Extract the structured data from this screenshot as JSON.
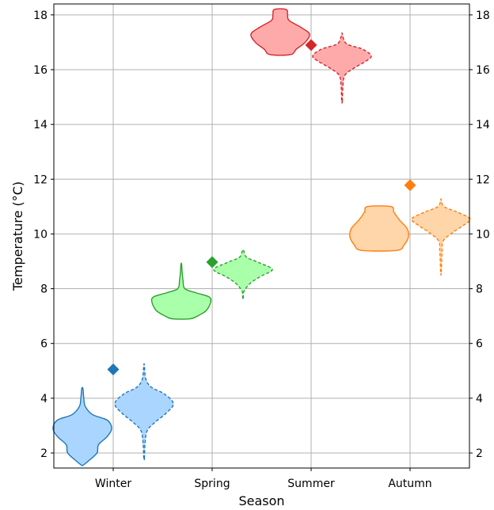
{
  "chart_data": {
    "type": "violin",
    "xlabel": "Season",
    "ylabel": "Temperature (°C)",
    "categories": [
      "Winter",
      "Spring",
      "Summer",
      "Autumn"
    ],
    "ylim": [
      1.45,
      18.4
    ],
    "yticks": [
      2,
      4,
      6,
      8,
      10,
      12,
      14,
      16,
      18
    ],
    "grid": true,
    "colors": {
      "Winter": {
        "line": "#1f77b4",
        "fill": "#aad5ff"
      },
      "Spring": {
        "line": "#2ca02c",
        "fill": "#aaffaa"
      },
      "Summer": {
        "line": "#d62728",
        "fill": "#ffaaaa"
      },
      "Autumn": {
        "line": "#ff7f0e",
        "fill": "#ffd5aa"
      }
    },
    "diamond_markers": [
      {
        "category": "Winter",
        "value": 5.05
      },
      {
        "category": "Spring",
        "value": 8.97
      },
      {
        "category": "Summer",
        "value": 16.9
      },
      {
        "category": "Autumn",
        "value": 11.78
      }
    ],
    "violins": [
      {
        "category": "Winter",
        "side": "left",
        "style": "solid",
        "profile": [
          [
            1.55,
            0.02
          ],
          [
            1.7,
            0.2
          ],
          [
            2.0,
            0.5
          ],
          [
            2.3,
            0.55
          ],
          [
            2.6,
            0.85
          ],
          [
            2.9,
            1.0
          ],
          [
            3.2,
            0.85
          ],
          [
            3.4,
            0.35
          ],
          [
            3.7,
            0.1
          ],
          [
            4.0,
            0.05
          ],
          [
            4.35,
            0.02
          ]
        ]
      },
      {
        "category": "Winter",
        "side": "right",
        "style": "dashed",
        "profile": [
          [
            1.8,
            0.01
          ],
          [
            2.3,
            0.03
          ],
          [
            2.8,
            0.1
          ],
          [
            3.1,
            0.35
          ],
          [
            3.45,
            0.75
          ],
          [
            3.8,
            1.0
          ],
          [
            4.15,
            0.7
          ],
          [
            4.4,
            0.25
          ],
          [
            4.7,
            0.06
          ],
          [
            5.2,
            0.01
          ]
        ]
      },
      {
        "category": "Spring",
        "side": "left",
        "style": "solid",
        "profile": [
          [
            6.9,
            0.3
          ],
          [
            7.0,
            0.55
          ],
          [
            7.2,
            0.85
          ],
          [
            7.5,
            1.0
          ],
          [
            7.7,
            0.95
          ],
          [
            7.85,
            0.5
          ],
          [
            8.0,
            0.12
          ],
          [
            8.3,
            0.06
          ],
          [
            8.6,
            0.03
          ],
          [
            8.9,
            0.01
          ]
        ]
      },
      {
        "category": "Spring",
        "side": "right",
        "style": "dashed",
        "profile": [
          [
            7.65,
            0.01
          ],
          [
            7.9,
            0.03
          ],
          [
            8.2,
            0.25
          ],
          [
            8.45,
            0.6
          ],
          [
            8.7,
            1.0
          ],
          [
            8.95,
            0.55
          ],
          [
            9.15,
            0.12
          ],
          [
            9.4,
            0.02
          ]
        ]
      },
      {
        "category": "Summer",
        "side": "left",
        "style": "solid",
        "profile": [
          [
            16.55,
            0.35
          ],
          [
            16.75,
            0.55
          ],
          [
            17.0,
            0.85
          ],
          [
            17.3,
            1.0
          ],
          [
            17.55,
            0.7
          ],
          [
            17.8,
            0.3
          ],
          [
            18.0,
            0.25
          ],
          [
            18.2,
            0.2
          ]
        ]
      },
      {
        "category": "Summer",
        "side": "right",
        "style": "dashed",
        "profile": [
          [
            14.85,
            0.01
          ],
          [
            15.4,
            0.03
          ],
          [
            15.8,
            0.1
          ],
          [
            16.05,
            0.4
          ],
          [
            16.3,
            0.8
          ],
          [
            16.5,
            1.0
          ],
          [
            16.75,
            0.7
          ],
          [
            16.95,
            0.15
          ],
          [
            17.3,
            0.01
          ]
        ]
      },
      {
        "category": "Autumn",
        "side": "left",
        "style": "solid",
        "profile": [
          [
            9.4,
            0.6
          ],
          [
            9.6,
            0.85
          ],
          [
            9.9,
            1.0
          ],
          [
            10.2,
            0.95
          ],
          [
            10.5,
            0.7
          ],
          [
            10.8,
            0.5
          ],
          [
            11.0,
            0.4
          ]
        ]
      },
      {
        "category": "Autumn",
        "side": "right",
        "style": "dashed",
        "profile": [
          [
            8.6,
            0.01
          ],
          [
            9.4,
            0.04
          ],
          [
            9.75,
            0.08
          ],
          [
            10.05,
            0.4
          ],
          [
            10.3,
            0.75
          ],
          [
            10.55,
            1.0
          ],
          [
            10.8,
            0.55
          ],
          [
            11.0,
            0.1
          ],
          [
            11.25,
            0.01
          ]
        ]
      }
    ]
  }
}
